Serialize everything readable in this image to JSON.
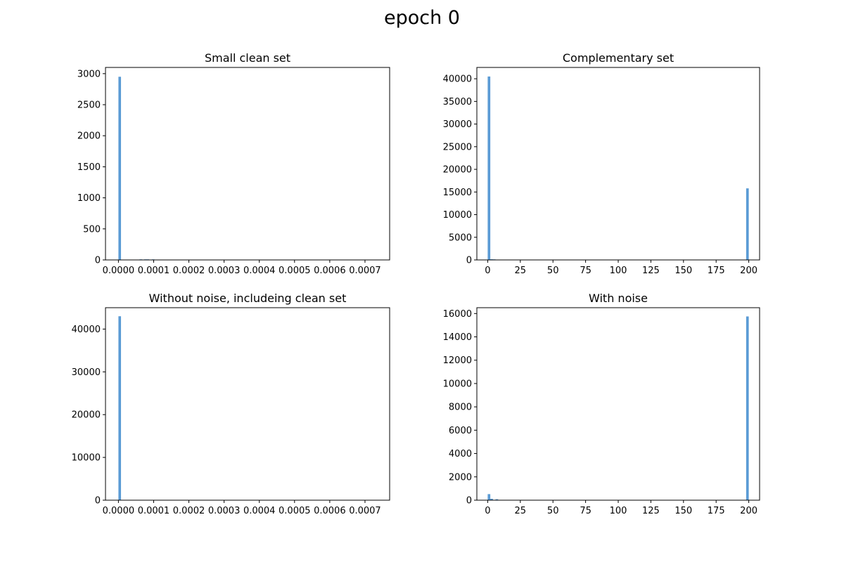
{
  "figure": {
    "suptitle": "epoch 0",
    "bar_color": "#5b9bd5",
    "axes_color": "#000000"
  },
  "chart_data": [
    {
      "type": "bar",
      "title": "Small clean set",
      "xlabel": "",
      "ylabel": "",
      "xlim": [
        -3.67e-05,
        0.00077
      ],
      "ylim": [
        0,
        3100
      ],
      "xticks": [
        0,
        0.0001,
        0.0002,
        0.0003,
        0.0004,
        0.0005,
        0.0006,
        0.0007
      ],
      "xtick_labels": [
        "0.0000",
        "0.0001",
        "0.0002",
        "0.0003",
        "0.0004",
        "0.0005",
        "0.0006",
        "0.0007"
      ],
      "yticks": [
        0,
        500,
        1000,
        1500,
        2000,
        2500,
        3000
      ],
      "ytick_labels": [
        "0",
        "500",
        "1000",
        "1500",
        "2000",
        "2500",
        "3000"
      ],
      "bin_width": 7.3e-06,
      "bins": [
        {
          "x": 0.0,
          "value": 2950
        },
        {
          "x": 6e-05,
          "value": 8
        },
        {
          "x": 7.3e-05,
          "value": 5
        },
        {
          "x": 8e-05,
          "value": 5
        },
        {
          "x": 9.5e-05,
          "value": 4
        }
      ]
    },
    {
      "type": "bar",
      "title": "Complementary set",
      "xlabel": "",
      "ylabel": "",
      "xlim": [
        -8.3,
        208.3
      ],
      "ylim": [
        0,
        42500
      ],
      "xticks": [
        0,
        25,
        50,
        75,
        100,
        125,
        150,
        175,
        200
      ],
      "xtick_labels": [
        "0",
        "25",
        "50",
        "75",
        "100",
        "125",
        "150",
        "175",
        "200"
      ],
      "yticks": [
        0,
        5000,
        10000,
        15000,
        20000,
        25000,
        30000,
        35000,
        40000
      ],
      "ytick_labels": [
        "0",
        "5000",
        "10000",
        "15000",
        "20000",
        "25000",
        "30000",
        "35000",
        "40000"
      ],
      "bin_width": 2,
      "bins": [
        {
          "x": 0,
          "value": 40500
        },
        {
          "x": 2,
          "value": 150
        },
        {
          "x": 4,
          "value": 60
        },
        {
          "x": 198,
          "value": 15800
        }
      ]
    },
    {
      "type": "bar",
      "title": "Without noise, includeing clean set",
      "xlabel": "",
      "ylabel": "",
      "xlim": [
        -3.67e-05,
        0.00077
      ],
      "ylim": [
        0,
        45000
      ],
      "xticks": [
        0,
        0.0001,
        0.0002,
        0.0003,
        0.0004,
        0.0005,
        0.0006,
        0.0007
      ],
      "xtick_labels": [
        "0.0000",
        "0.0001",
        "0.0002",
        "0.0003",
        "0.0004",
        "0.0005",
        "0.0006",
        "0.0007"
      ],
      "yticks": [
        0,
        10000,
        20000,
        30000,
        40000
      ],
      "ytick_labels": [
        "0",
        "10000",
        "20000",
        "30000",
        "40000"
      ],
      "bin_width": 7.3e-06,
      "bins": [
        {
          "x": 0.0,
          "value": 43000
        }
      ]
    },
    {
      "type": "bar",
      "title": "With noise",
      "xlabel": "",
      "ylabel": "",
      "xlim": [
        -8.3,
        208.3
      ],
      "ylim": [
        0,
        16500
      ],
      "xticks": [
        0,
        25,
        50,
        75,
        100,
        125,
        150,
        175,
        200
      ],
      "xtick_labels": [
        "0",
        "25",
        "50",
        "75",
        "100",
        "125",
        "150",
        "175",
        "200"
      ],
      "yticks": [
        0,
        2000,
        4000,
        6000,
        8000,
        10000,
        12000,
        14000,
        16000
      ],
      "ytick_labels": [
        "0",
        "2000",
        "4000",
        "6000",
        "8000",
        "10000",
        "12000",
        "14000",
        "16000"
      ],
      "bin_width": 2,
      "bins": [
        {
          "x": 0,
          "value": 520
        },
        {
          "x": 2,
          "value": 120
        },
        {
          "x": 6,
          "value": 80
        },
        {
          "x": 198,
          "value": 15750
        }
      ]
    }
  ]
}
